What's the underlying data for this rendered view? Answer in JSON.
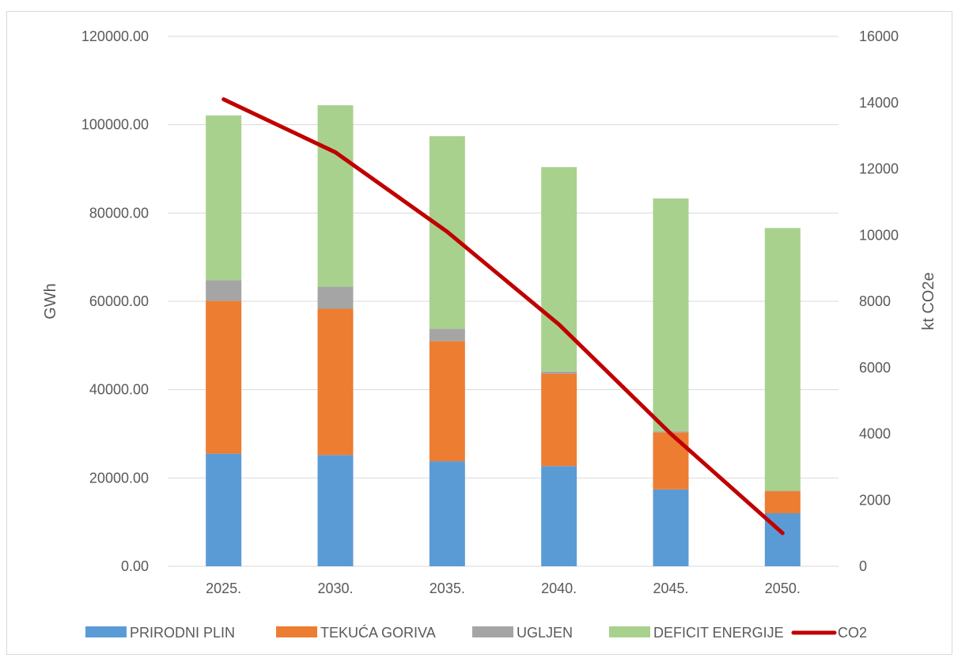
{
  "chart_data": {
    "type": "bar",
    "stacked": true,
    "categories": [
      "2025.",
      "2030.",
      "2035.",
      "2040.",
      "2045.",
      "2050."
    ],
    "series": [
      {
        "name": "PRIRODNI PLIN",
        "color": "#5b9bd5",
        "values": [
          25500,
          25200,
          23800,
          22700,
          17400,
          12000
        ]
      },
      {
        "name": "TEKUĆA GORIVA",
        "color": "#ed7d31",
        "values": [
          34600,
          33100,
          27200,
          20900,
          12900,
          5000
        ]
      },
      {
        "name": "UGLJEN",
        "color": "#a5a5a5",
        "values": [
          4700,
          5000,
          2800,
          500,
          300,
          100
        ]
      },
      {
        "name": "DEFICIT ENERGIJE",
        "color": "#a9d18e",
        "values": [
          37300,
          41100,
          43600,
          46300,
          52700,
          59500
        ]
      }
    ],
    "line_series": {
      "name": "CO2",
      "color": "#c00000",
      "axis": "right",
      "values": [
        14100,
        12500,
        10100,
        7300,
        4000,
        1000
      ]
    },
    "ylabel": "GWh",
    "ylabel_right": "kt CO2e",
    "ylim": [
      0,
      120000
    ],
    "ylim_right": [
      0,
      16000
    ],
    "yticks": [
      "0.00",
      "20000.00",
      "40000.00",
      "60000.00",
      "80000.00",
      "100000.00",
      "120000.00"
    ],
    "yticks_right": [
      "0",
      "2000",
      "4000",
      "6000",
      "8000",
      "10000",
      "12000",
      "14000",
      "16000"
    ],
    "grid": true,
    "legend_position": "bottom"
  }
}
